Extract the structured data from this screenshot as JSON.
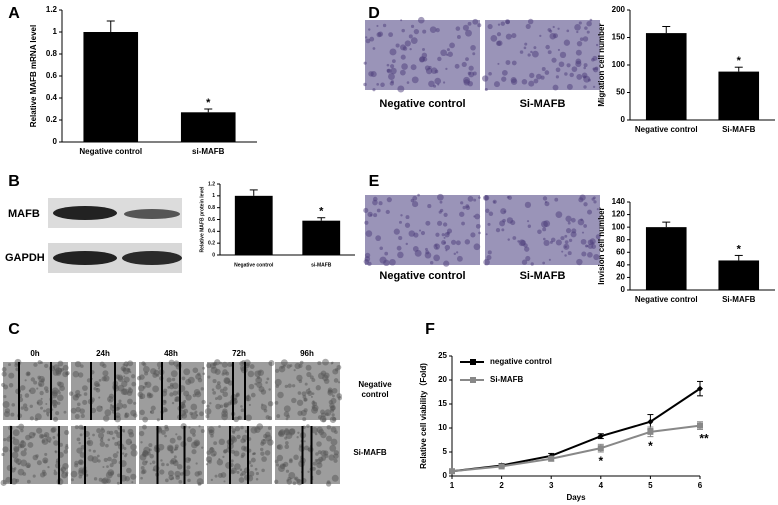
{
  "chart_data": [
    {
      "type": "bar",
      "panel": "A",
      "ylabel": "Relative MAFB mRNA level",
      "categories": [
        "Negative control",
        "si-MAFB"
      ],
      "values": [
        1,
        0.27
      ],
      "errors": [
        0.1,
        0.03
      ],
      "significance": [
        null,
        "*"
      ],
      "color": "#000000",
      "ylim": [
        0,
        1.2
      ],
      "yticks": [
        0,
        0.2,
        0.4,
        0.6,
        0.8,
        1,
        1.2
      ]
    },
    {
      "type": "bar",
      "panel": "B",
      "ylabel": "Relative MAFB protein level",
      "categories": [
        "Negative control",
        "si-MAFB"
      ],
      "values": [
        1,
        0.58
      ],
      "errors": [
        0.1,
        0.05
      ],
      "significance": [
        null,
        "*"
      ],
      "color": "#000000",
      "ylim": [
        0,
        1.2
      ],
      "yticks": [
        0,
        0.2,
        0.4,
        0.6,
        0.8,
        1,
        1.2
      ],
      "blot_labels": [
        "MAFB",
        "GAPDH"
      ]
    },
    {
      "type": "bar",
      "panel": "D",
      "ylabel": "Migration cell number",
      "categories": [
        "Negative control",
        "Si-MAFB"
      ],
      "values": [
        158,
        88
      ],
      "errors": [
        12,
        8
      ],
      "significance": [
        null,
        "*"
      ],
      "color": "#000000",
      "ylim": [
        0,
        200
      ],
      "yticks": [
        0,
        50,
        100,
        150,
        200
      ],
      "image_labels": [
        "Negative control",
        "Si-MAFB"
      ]
    },
    {
      "type": "bar",
      "panel": "E",
      "ylabel": "Invision cell number",
      "categories": [
        "Negative control",
        "Si-MAFB"
      ],
      "values": [
        100,
        47
      ],
      "errors": [
        8,
        8
      ],
      "significance": [
        null,
        "*"
      ],
      "color": "#000000",
      "ylim": [
        0,
        140
      ],
      "yticks": [
        0,
        20,
        40,
        60,
        80,
        100,
        120,
        140
      ],
      "image_labels": [
        "Negative control",
        "Si-MAFB"
      ]
    },
    {
      "type": "line",
      "panel": "F",
      "ylabel": "Relative cell viability（Fold)",
      "xlabel": "Days",
      "x": [
        1,
        2,
        3,
        4,
        5,
        6
      ],
      "xlim": [
        1,
        6
      ],
      "xticks": [
        1,
        2,
        3,
        4,
        5,
        6
      ],
      "ylim": [
        0,
        25
      ],
      "yticks": [
        0,
        5,
        10,
        15,
        20,
        25
      ],
      "legend": "upper left",
      "series": [
        {
          "name": "negative control",
          "color": "#000000",
          "values": [
            1,
            2.2,
            4.2,
            8.3,
            11.3,
            18.2
          ],
          "errors": [
            0.3,
            0.4,
            0.5,
            0.5,
            1.5,
            1.5
          ],
          "significance": [
            null,
            null,
            null,
            null,
            null,
            null
          ]
        },
        {
          "name": "Si-MAFB",
          "color": "#888888",
          "values": [
            1,
            2,
            3.6,
            5.8,
            9.2,
            10.5
          ],
          "errors": [
            0.3,
            0.3,
            0.5,
            0.8,
            1,
            0.8
          ],
          "significance": [
            null,
            null,
            null,
            "*",
            "*",
            "**"
          ]
        }
      ]
    }
  ],
  "panel_c": {
    "panel": "C",
    "timepoints": [
      "0h",
      "24h",
      "48h",
      "72h",
      "96h"
    ],
    "rows": [
      "Negative control",
      "Si-MAFB"
    ]
  }
}
